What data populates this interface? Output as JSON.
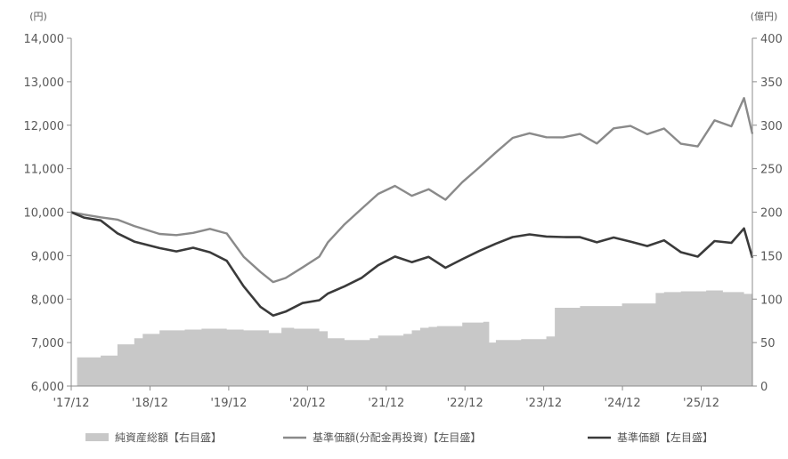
{
  "chart_data": {
    "type": "line",
    "left_unit": "(円)",
    "right_unit": "(億円)",
    "x_tick_labels": [
      "'17/12",
      "'18/12",
      "'19/12",
      "'20/12",
      "'21/12",
      "'22/12",
      "'23/12",
      "'24/12",
      "'25/12"
    ],
    "x_range": [
      2017.95,
      2026.05
    ],
    "left_ylim": [
      6000,
      14000
    ],
    "left_ticks": [
      6000,
      7000,
      8000,
      9000,
      10000,
      11000,
      12000,
      13000,
      14000
    ],
    "left_tick_labels": [
      "6,000",
      "7,000",
      "8,000",
      "9,000",
      "10,000",
      "11,000",
      "12,000",
      "13,000",
      "14,000"
    ],
    "right_ylim": [
      0,
      400
    ],
    "right_ticks": [
      0,
      50,
      100,
      150,
      200,
      250,
      300,
      350,
      400
    ],
    "right_tick_labels": [
      "0",
      "50",
      "100",
      "150",
      "200",
      "250",
      "300",
      "350",
      "400"
    ],
    "grid": false,
    "legend_position": "bottom",
    "colors": {
      "area": "#c8c8c8",
      "reinvested": "#8a8a8a",
      "nav": "#3a3a3a",
      "axis": "#8c8c8c"
    },
    "series": [
      {
        "name": "純資産総額【右目盛】",
        "kind": "area",
        "axis": "right",
        "x": [
          2017.95,
          2018.0,
          2018.02,
          2018.2,
          2018.3,
          2018.5,
          2018.7,
          2018.8,
          2019.0,
          2019.2,
          2019.3,
          2019.5,
          2019.8,
          2020.0,
          2020.3,
          2020.45,
          2020.6,
          2020.9,
          2021.0,
          2021.2,
          2021.5,
          2021.6,
          2021.9,
          2022.0,
          2022.1,
          2022.2,
          2022.3,
          2022.6,
          2022.85,
          2022.92,
          2023.0,
          2023.3,
          2023.6,
          2023.7,
          2024.0,
          2024.5,
          2024.9,
          2025.0,
          2025.1,
          2025.2,
          2025.5,
          2025.7,
          2025.95,
          2026.05
        ],
        "values": [
          0,
          0,
          33,
          33,
          35,
          48,
          55,
          60,
          64,
          64,
          65,
          66,
          65,
          64,
          61,
          67,
          66,
          63,
          55,
          53,
          55,
          58,
          60,
          64,
          67,
          68,
          69,
          73,
          74,
          50,
          53,
          54,
          57,
          90,
          92,
          95,
          107,
          108,
          108,
          109,
          110,
          108,
          106,
          105
        ]
      },
      {
        "name": "基準価額(分配金再投資)【左目盛】",
        "kind": "line",
        "axis": "left",
        "x": [
          2017.95,
          2018.1,
          2018.3,
          2018.5,
          2018.7,
          2019.0,
          2019.2,
          2019.4,
          2019.6,
          2019.8,
          2020.0,
          2020.2,
          2020.35,
          2020.5,
          2020.7,
          2020.9,
          2021.0,
          2021.2,
          2021.4,
          2021.6,
          2021.8,
          2022.0,
          2022.2,
          2022.4,
          2022.6,
          2022.8,
          2023.0,
          2023.2,
          2023.4,
          2023.6,
          2023.8,
          2024.0,
          2024.2,
          2024.4,
          2024.6,
          2024.8,
          2025.0,
          2025.2,
          2025.4,
          2025.6,
          2025.8,
          2025.95,
          2026.05
        ],
        "values": [
          10000,
          9950,
          9900,
          9800,
          9700,
          9500,
          9450,
          9550,
          9600,
          9500,
          9000,
          8600,
          8400,
          8500,
          8700,
          9000,
          9300,
          9700,
          10100,
          10400,
          10600,
          10400,
          10500,
          10300,
          10700,
          11000,
          11400,
          11700,
          11800,
          11750,
          11700,
          11800,
          11600,
          11900,
          12000,
          11800,
          11900,
          11600,
          11500,
          12100,
          12000,
          12600,
          11800
        ]
      },
      {
        "name": "基準価額【左目盛】",
        "kind": "line",
        "axis": "left",
        "x": [
          2017.95,
          2018.1,
          2018.3,
          2018.5,
          2018.7,
          2019.0,
          2019.2,
          2019.4,
          2019.6,
          2019.8,
          2020.0,
          2020.2,
          2020.35,
          2020.5,
          2020.7,
          2020.9,
          2021.0,
          2021.2,
          2021.4,
          2021.6,
          2021.8,
          2022.0,
          2022.2,
          2022.4,
          2022.6,
          2022.8,
          2023.0,
          2023.2,
          2023.4,
          2023.6,
          2023.8,
          2024.0,
          2024.2,
          2024.4,
          2024.6,
          2024.8,
          2025.0,
          2025.2,
          2025.4,
          2025.6,
          2025.8,
          2025.95,
          2026.05
        ],
        "values": [
          10000,
          9900,
          9800,
          9500,
          9350,
          9150,
          9100,
          9200,
          9050,
          8900,
          8300,
          7800,
          7650,
          7700,
          7900,
          8000,
          8100,
          8300,
          8500,
          8750,
          9000,
          8850,
          8950,
          8750,
          8900,
          9100,
          9300,
          9400,
          9500,
          9450,
          9400,
          9450,
          9300,
          9400,
          9350,
          9200,
          9350,
          9100,
          8950,
          9350,
          9300,
          9600,
          8950
        ]
      }
    ]
  }
}
